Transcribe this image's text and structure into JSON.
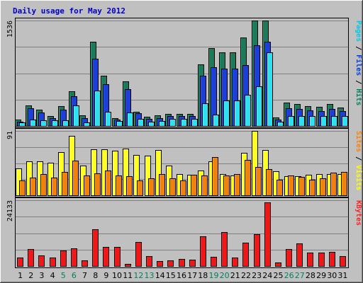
{
  "chart_data": {
    "type": "bar",
    "title": "Daily usage for May 2012",
    "days": [
      "1",
      "2",
      "3",
      "4",
      "5",
      "6",
      "7",
      "8",
      "9",
      "10",
      "11",
      "12",
      "13",
      "14",
      "15",
      "16",
      "17",
      "18",
      "19",
      "20",
      "21",
      "22",
      "23",
      "24",
      "25",
      "26",
      "27",
      "28",
      "29",
      "30",
      "31"
    ],
    "weekend_days": [
      "5",
      "6",
      "12",
      "13",
      "19",
      "20",
      "26",
      "27"
    ],
    "panels": [
      {
        "id": "hits",
        "max_label": "1536",
        "ylim": [
          0,
          1536
        ],
        "ylabel_parts": [
          {
            "text": "Pages",
            "color": "#00c8e8"
          },
          {
            "text": " / ",
            "color": "#000000"
          },
          {
            "text": "Files",
            "color": "#0040e0"
          },
          {
            "text": " / ",
            "color": "#000000"
          },
          {
            "text": "Hits",
            "color": "#008060"
          }
        ],
        "series": [
          {
            "name": "Hits",
            "color": "#1c7a5a",
            "values": [
              92,
              302,
              234,
              144,
              290,
              504,
              153,
              1230,
              733,
              118,
              650,
              209,
              134,
              150,
              178,
              178,
              178,
              902,
              1137,
              1072,
              1072,
              1285,
              1531,
              1536,
              124,
              340,
              316,
              288,
              280,
              320,
              265
            ]
          },
          {
            "name": "Files",
            "color": "#1c3fd8",
            "values": [
              66,
              256,
              193,
              118,
              235,
              436,
              118,
              978,
              606,
              89,
              533,
              184,
              101,
              118,
              145,
              145,
              145,
              735,
              860,
              835,
              835,
              891,
              1180,
              1230,
              97,
              259,
              246,
              229,
              220,
              251,
              216
            ]
          },
          {
            "name": "Pages",
            "color": "#30e0f0",
            "values": [
              52,
              88,
              86,
              86,
              87,
              303,
              54,
              512,
              205,
              70,
              192,
              103,
              66,
              73,
              104,
              104,
              104,
              332,
              168,
              375,
              375,
              455,
              580,
              1070,
              61,
              148,
              145,
              140,
              145,
              147,
              148
            ]
          }
        ]
      },
      {
        "id": "visits",
        "max_label": "91",
        "ylim": [
          0,
          91
        ],
        "ylabel_parts": [
          {
            "text": "Sites",
            "color": "#ff8000"
          },
          {
            "text": " / ",
            "color": "#000000"
          },
          {
            "text": "Visits",
            "color": "#ffff00"
          }
        ],
        "series": [
          {
            "name": "Visits",
            "color": "#ffff28",
            "values": [
              38,
              48,
              48,
              46,
              61,
              84,
              42,
              65,
              65,
              63,
              66,
              57,
              56,
              64,
              42,
              30,
              29,
              35,
              48,
              30,
              28,
              60,
              91,
              64,
              34,
              27,
              27,
              29,
              30,
              30,
              30
            ]
          },
          {
            "name": "Sites",
            "color": "#f08010",
            "values": [
              21,
              25,
              30,
              25,
              33,
              49,
              28,
              31,
              35,
              28,
              27,
              21,
              24,
              30,
              24,
              21,
              29,
              28,
              54,
              28,
              30,
              50,
              40,
              37,
              22,
              28,
              26,
              22,
              24,
              32,
              33
            ]
          }
        ]
      },
      {
        "id": "kbytes",
        "max_label": "24133",
        "ylim": [
          0,
          24133
        ],
        "ylabel_parts": [
          {
            "text": "KBytes",
            "color": "#ff2020"
          }
        ],
        "series": [
          {
            "name": "KBytes",
            "color": "#ee1818",
            "values": [
              3200,
              6100,
              4000,
              3200,
              5800,
              6400,
              2200,
              13400,
              7100,
              7100,
              800,
              8700,
              3600,
              1900,
              2100,
              2500,
              2400,
              10800,
              3300,
              12500,
              3200,
              8600,
              11700,
              23300,
              1200,
              6100,
              8200,
              5000,
              5000,
              5200,
              3700
            ]
          }
        ]
      }
    ]
  }
}
